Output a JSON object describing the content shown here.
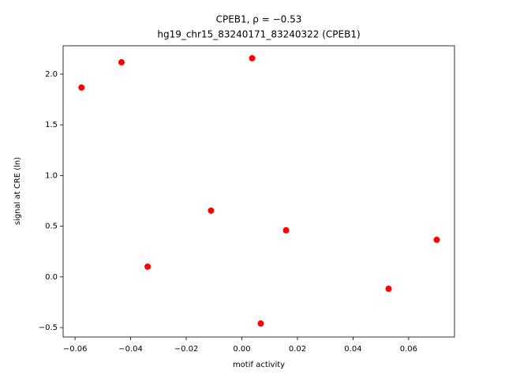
{
  "chart_data": {
    "type": "scatter",
    "title": "CPEB1, ρ = −0.53",
    "subtitle": "hg19_chr15_83240171_83240322 (CPEB1)",
    "x_label": "motif activity",
    "y_label": "signal at CRE (ln)",
    "color": "#ff0000",
    "series": [
      {
        "x": [
          -0.0577,
          -0.0433,
          -0.0339,
          -0.0111,
          0.0037,
          0.0068,
          0.0159,
          0.0528,
          0.0701
        ],
        "values": [
          1.868,
          2.117,
          0.101,
          0.654,
          2.157,
          -0.46,
          0.46,
          -0.117,
          0.366
        ]
      }
    ],
    "xlim": [
      -0.0643,
      0.0765
    ],
    "ylim": [
      -0.593,
      2.28
    ],
    "xticks": [
      {
        "value": -0.06,
        "label": "−0.06"
      },
      {
        "value": -0.04,
        "label": "−0.04"
      },
      {
        "value": -0.02,
        "label": "−0.02"
      },
      {
        "value": 0,
        "label": "0.00"
      },
      0.02,
      0.04,
      0.06
    ],
    "yticks": [
      {
        "value": -0.5,
        "label": "−0.5"
      },
      {
        "value": 0,
        "label": "0.0"
      },
      0.5,
      {
        "value": 1,
        "label": "1.0"
      },
      1.5,
      {
        "value": 2,
        "label": "2.0"
      }
    ],
    "grid": false
  }
}
